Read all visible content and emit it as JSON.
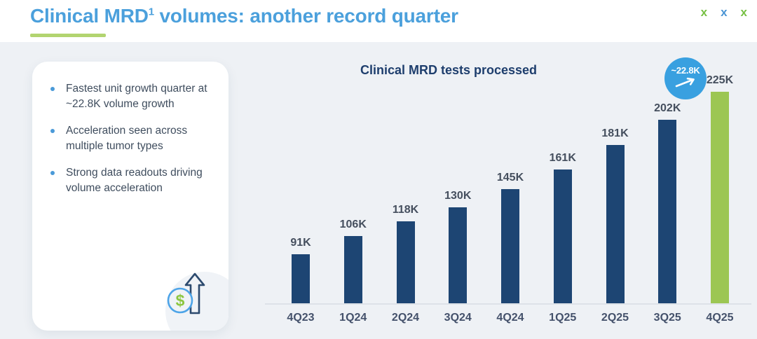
{
  "slide": {
    "header": {
      "title_main": "Clinical MRD",
      "title_sup": "1",
      "title_tail": " volumes: another record quarter",
      "title_color": "#4ba0dc",
      "accent_color": "#b2d470",
      "decor_marks": [
        {
          "glyph": "x",
          "color": "#77c043"
        },
        {
          "glyph": "x",
          "color": "#4a94d4"
        },
        {
          "glyph": "x",
          "color": "#77c043"
        }
      ]
    },
    "card": {
      "bullets": [
        "Fastest unit growth quarter at ~22.8K volume growth",
        "Acceleration seen across multiple tumor types",
        "Strong data readouts driving volume acceleration"
      ],
      "icon": "dollar-growth-arrow-icon"
    }
  },
  "chart_data": {
    "type": "bar",
    "title": "Clinical MRD tests processed",
    "categories": [
      "4Q23",
      "1Q24",
      "2Q24",
      "3Q24",
      "4Q24",
      "1Q25",
      "2Q25",
      "3Q25",
      "4Q25"
    ],
    "values": [
      91000,
      106000,
      118000,
      130000,
      145000,
      161000,
      181000,
      202000,
      225000
    ],
    "labels": [
      "91K",
      "106K",
      "118K",
      "130K",
      "145K",
      "161K",
      "181K",
      "202K",
      "225K"
    ],
    "bar_color": "#1d4573",
    "highlight_index": 8,
    "highlight_color": "#9cc653",
    "annotation": {
      "text": "~22.8K",
      "color": "#39a0e0"
    },
    "ylim_k": [
      50,
      235
    ],
    "xlabel": "",
    "ylabel": "",
    "gridlines": false,
    "legend": null
  }
}
